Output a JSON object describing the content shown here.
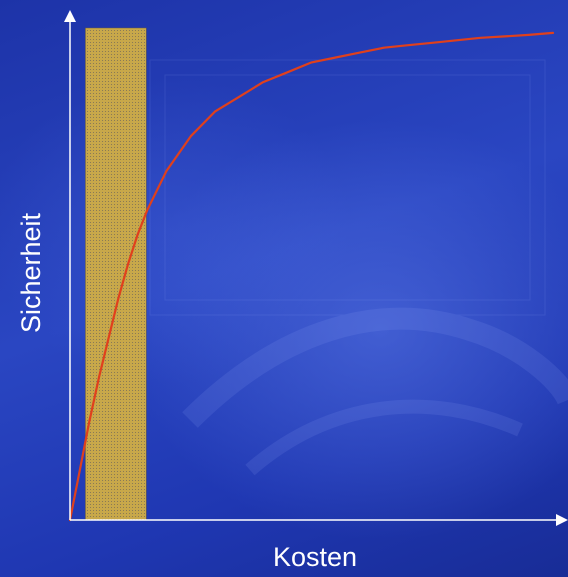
{
  "chart_data": {
    "type": "line",
    "title": "",
    "xlabel": "Kosten",
    "ylabel": "Sicherheit",
    "xlim": [
      0,
      100
    ],
    "ylim": [
      0,
      100
    ],
    "grid": false,
    "legend": "none",
    "series": [
      {
        "color": "#e0401c",
        "x": [
          0,
          2,
          4,
          6,
          8,
          10,
          12,
          14,
          16,
          20,
          25,
          30,
          35,
          40,
          45,
          50,
          55,
          60,
          65,
          70,
          75,
          80,
          85,
          90,
          95,
          100
        ],
        "y": [
          0,
          10,
          20,
          29,
          37,
          45,
          52,
          58,
          63,
          71,
          78,
          83,
          86,
          89,
          91,
          93,
          94,
          95,
          96,
          96.5,
          97,
          97.5,
          98,
          98.3,
          98.6,
          99
        ]
      }
    ],
    "highlight_band": {
      "x_start": 3.2,
      "x_end": 15.8,
      "color": "#c8a84a"
    },
    "colors": {
      "axis": "#ffffff",
      "line": "#e0401c",
      "band": "#c8a84a"
    }
  }
}
